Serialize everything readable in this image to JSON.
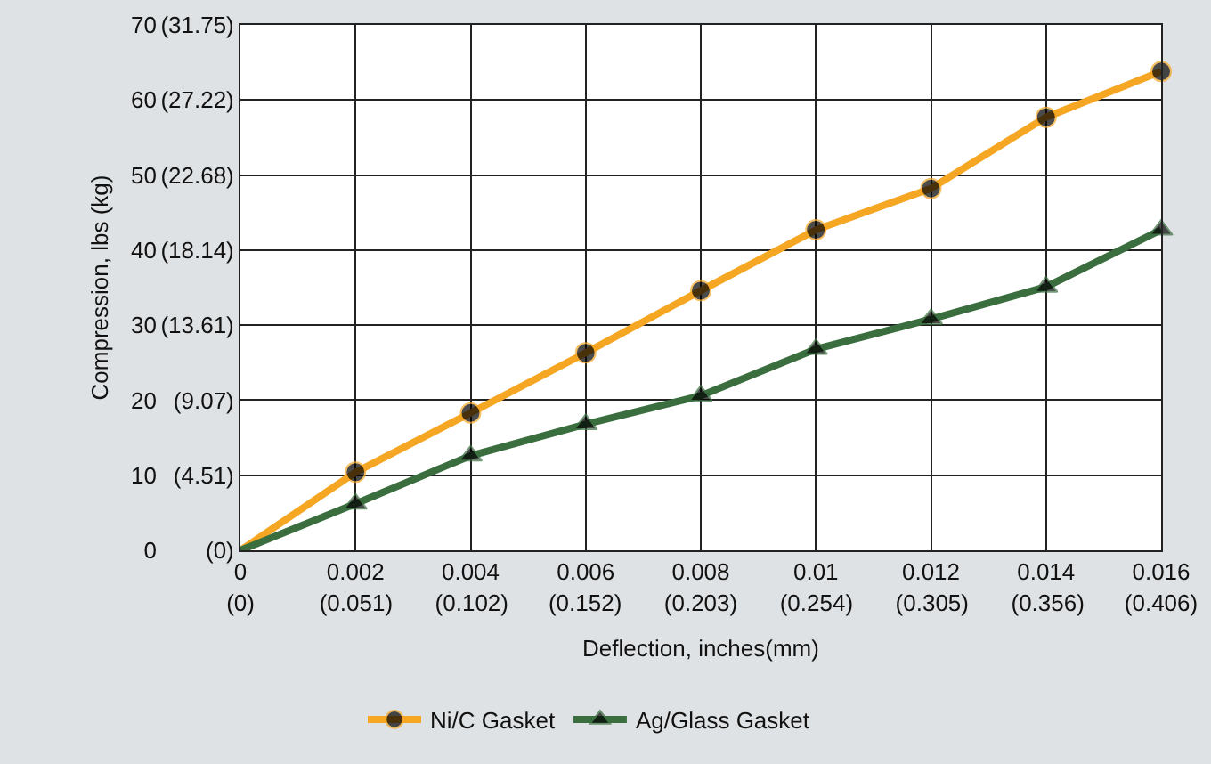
{
  "chart_data": {
    "type": "line",
    "xlabel": "Deflection, inches(mm)",
    "ylabel": "Compression, lbs (kg)",
    "x": [
      0,
      0.002,
      0.004,
      0.006,
      0.008,
      0.01,
      0.012,
      0.014,
      0.016
    ],
    "series": [
      {
        "name": "Ni/C Gasket",
        "color": "#f5a623",
        "marker": "circle",
        "values": [
          0,
          10.4,
          18.3,
          26.3,
          34.6,
          42.7,
          48.2,
          57.7,
          63.8
        ]
      },
      {
        "name": "Ag/Glass Gasket",
        "color": "#3b6e3f",
        "marker": "triangle",
        "values": [
          0,
          6.2,
          12.6,
          16.8,
          20.6,
          26.8,
          30.8,
          35.1,
          42.7
        ]
      }
    ],
    "xlim": [
      0,
      0.016
    ],
    "ylim": [
      0,
      70
    ],
    "xticks": [
      0,
      0.002,
      0.004,
      0.006,
      0.008,
      0.01,
      0.012,
      0.014,
      0.016
    ],
    "x2lim": [
      0,
      0.406
    ],
    "x2ticks": [
      {
        "value": 0,
        "label": "(0)"
      },
      {
        "value": 0.051,
        "label": "(0.051)"
      },
      {
        "value": 0.102,
        "label": "(0.102)"
      },
      {
        "value": 0.152,
        "label": "(0.152)"
      },
      {
        "value": 0.203,
        "label": "(0.203)"
      },
      {
        "value": 0.254,
        "label": "(0.254)"
      },
      {
        "value": 0.305,
        "label": "(0.305)"
      },
      {
        "value": 0.356,
        "label": "(0.356)"
      },
      {
        "value": 0.406,
        "label": "(0.406)"
      }
    ],
    "yticks": [
      0,
      10,
      20,
      30,
      40,
      50,
      60,
      70
    ],
    "y2lim": [
      0,
      31.75
    ],
    "y2ticks": [
      {
        "value": 0,
        "label": "(0)"
      },
      {
        "value": 4.51,
        "label": "(4.51)"
      },
      {
        "value": 9.07,
        "label": "(9.07)"
      },
      {
        "value": 13.61,
        "label": "(13.61)"
      },
      {
        "value": 18.14,
        "label": "(18.14)"
      },
      {
        "value": 22.68,
        "label": "(22.68)"
      },
      {
        "value": 27.22,
        "label": "(27.22)"
      },
      {
        "value": 31.75,
        "label": "(31.75)"
      }
    ],
    "grid": true,
    "legend": "bottom",
    "line_style": "solid"
  }
}
